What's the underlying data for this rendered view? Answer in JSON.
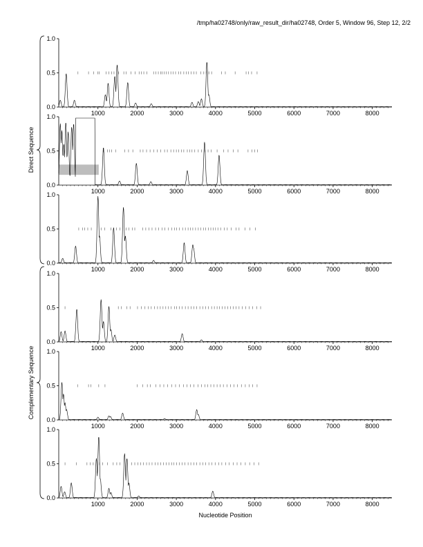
{
  "header": "/tmp/ha02748/only/raw_result_dir/ha02748, Order 5, Window 96, Step 12, 2/2",
  "xlabel": "Nucleotide Position",
  "group_labels": [
    "Direct Sequence",
    "Complementary Sequence"
  ],
  "colors": {
    "trace": "#000000",
    "axis": "#000000",
    "highlight": "#bdbdbd",
    "tick": "#555555"
  },
  "chart_data": [
    {
      "type": "line",
      "panel": 1,
      "xlim": [
        0,
        8500
      ],
      "ylim": [
        0,
        1
      ],
      "yticks": [
        "0.0",
        "0.5",
        "1.0"
      ],
      "xticks": [
        "1000",
        "2000",
        "3000",
        "4000",
        "5000",
        "6000",
        "7000",
        "8000"
      ],
      "peaks": [
        [
          40,
          0.1
        ],
        [
          190,
          0.49
        ],
        [
          400,
          0.1
        ],
        [
          1190,
          0.18
        ],
        [
          1260,
          0.35
        ],
        [
          1430,
          0.45
        ],
        [
          1490,
          0.62
        ],
        [
          1760,
          0.36
        ],
        [
          1960,
          0.06
        ],
        [
          2360,
          0.05
        ],
        [
          3400,
          0.07
        ],
        [
          3560,
          0.08
        ],
        [
          3640,
          0.12
        ],
        [
          3780,
          0.66
        ],
        [
          3830,
          0.18
        ]
      ],
      "marks": [
        490,
        760,
        890,
        1000,
        1030,
        1210,
        1280,
        1350,
        1410,
        1530,
        1660,
        1720,
        1840,
        1950,
        2050,
        2110,
        2170,
        2250,
        2420,
        2480,
        2540,
        2600,
        2640,
        2690,
        2740,
        2800,
        2860,
        2920,
        2980,
        3060,
        3110,
        3190,
        3250,
        3310,
        3380,
        3450,
        3510,
        3620,
        3700,
        3760,
        3830,
        3900,
        4150,
        4250,
        4500,
        4780,
        4840,
        4920,
        5060
      ]
    },
    {
      "type": "line",
      "panel": 2,
      "xlim": [
        0,
        8500
      ],
      "ylim": [
        0,
        1
      ],
      "yticks": [
        "0.0",
        "0.5",
        "1.0"
      ],
      "xticks": [
        "1000",
        "2000",
        "3000",
        "4000",
        "5000",
        "6000",
        "7000",
        "8000"
      ],
      "highlight_region": {
        "x": [
          0,
          1020
        ],
        "y": [
          0.15,
          0.3
        ]
      },
      "plateau": {
        "x": [
          430,
          920
        ],
        "y": 0.98
      },
      "peaks": [
        [
          40,
          0.9
        ],
        [
          80,
          0.8
        ],
        [
          130,
          0.6
        ],
        [
          180,
          0.92
        ],
        [
          240,
          0.78
        ],
        [
          330,
          0.85
        ],
        [
          380,
          0.9
        ],
        [
          1140,
          0.55
        ],
        [
          1150,
          0.25
        ],
        [
          1550,
          0.06
        ],
        [
          1980,
          0.32
        ],
        [
          2350,
          0.05
        ],
        [
          3280,
          0.21
        ],
        [
          3720,
          0.63
        ],
        [
          4090,
          0.44
        ]
      ],
      "marks": [
        1140,
        1240,
        1300,
        1350,
        1450,
        1680,
        1780,
        1890,
        2080,
        2150,
        2240,
        2330,
        2420,
        2510,
        2600,
        2700,
        2770,
        2860,
        2930,
        3000,
        3060,
        3130,
        3190,
        3280,
        3340,
        3400,
        3470,
        3560,
        3640,
        3730,
        3810,
        3890,
        4040,
        4210,
        4320,
        4450,
        4570,
        4830,
        4930,
        5000,
        5070
      ]
    },
    {
      "type": "line",
      "panel": 3,
      "xlim": [
        0,
        8500
      ],
      "ylim": [
        0,
        1
      ],
      "yticks": [
        "0.0",
        "0.5",
        "1.0"
      ],
      "xticks": [
        "1000",
        "2000",
        "3000",
        "4000",
        "5000",
        "6000",
        "7000",
        "8000"
      ],
      "peaks": [
        [
          100,
          0.07
        ],
        [
          430,
          0.25
        ],
        [
          1000,
          0.98
        ],
        [
          1040,
          0.4
        ],
        [
          1400,
          0.52
        ],
        [
          1650,
          0.82
        ],
        [
          1700,
          0.4
        ],
        [
          2420,
          0.04
        ],
        [
          3200,
          0.3
        ],
        [
          3420,
          0.27
        ],
        [
          3440,
          0.22
        ]
      ],
      "marks": [
        510,
        610,
        660,
        740,
        830,
        1080,
        1170,
        1330,
        1470,
        1560,
        1720,
        1790,
        1880,
        1940,
        2140,
        2220,
        2300,
        2380,
        2470,
        2550,
        2640,
        2710,
        2800,
        2880,
        2950,
        3010,
        3080,
        3160,
        3230,
        3300,
        3360,
        3420,
        3490,
        3560,
        3620,
        3690,
        3750,
        3820,
        3880,
        3940,
        4000,
        4060,
        4130,
        4220,
        4300,
        4400,
        4520,
        4600,
        4750,
        4880,
        5020
      ]
    },
    {
      "type": "line",
      "panel": 4,
      "xlim": [
        0,
        8500
      ],
      "ylim": [
        0,
        1
      ],
      "yticks": [
        "0.0",
        "0.5",
        "1.0"
      ],
      "xticks": [
        "1000",
        "2000",
        "3000",
        "4000",
        "5000",
        "6000",
        "7000",
        "8000"
      ],
      "peaks": [
        [
          60,
          0.15
        ],
        [
          160,
          0.16
        ],
        [
          460,
          0.48
        ],
        [
          1080,
          0.62
        ],
        [
          1140,
          0.3
        ],
        [
          1280,
          0.52
        ],
        [
          1330,
          0.18
        ],
        [
          1430,
          0.1
        ],
        [
          3150,
          0.12
        ],
        [
          3640,
          0.03
        ]
      ],
      "marks": [
        160,
        1520,
        1600,
        1740,
        1820,
        2010,
        2110,
        2200,
        2280,
        2360,
        2440,
        2520,
        2590,
        2660,
        2730,
        2800,
        2870,
        2950,
        3010,
        3080,
        3150,
        3230,
        3300,
        3380,
        3450,
        3520,
        3600,
        3680,
        3750,
        3820,
        3900,
        3970,
        4040,
        4100,
        4170,
        4240,
        4310,
        4380,
        4450,
        4520,
        4600,
        4680,
        4770,
        4860,
        4950,
        5050,
        5150
      ]
    },
    {
      "type": "line",
      "panel": 5,
      "xlim": [
        0,
        8500
      ],
      "ylim": [
        0,
        1
      ],
      "yticks": [
        "0.0",
        "0.5",
        "1.0"
      ],
      "xticks": [
        "1000",
        "2000",
        "3000",
        "4000",
        "5000",
        "6000",
        "7000",
        "8000"
      ],
      "peaks": [
        [
          80,
          0.55
        ],
        [
          120,
          0.38
        ],
        [
          160,
          0.25
        ],
        [
          200,
          0.15
        ],
        [
          1000,
          0.04
        ],
        [
          1280,
          0.06
        ],
        [
          1320,
          0.05
        ],
        [
          1630,
          0.1
        ],
        [
          2700,
          0.02
        ],
        [
          3520,
          0.15
        ],
        [
          3560,
          0.08
        ]
      ],
      "marks": [
        480,
        760,
        820,
        1020,
        1180,
        2000,
        2140,
        2260,
        2340,
        2480,
        2580,
        2680,
        2780,
        2880,
        2980,
        3080,
        3180,
        3270,
        3360,
        3450,
        3550,
        3640,
        3730,
        3800,
        3880,
        3960,
        4040,
        4120,
        4200,
        4290,
        4380,
        4470,
        4560,
        4660,
        4760,
        4860,
        4950,
        5060
      ]
    },
    {
      "type": "line",
      "panel": 6,
      "xlim": [
        0,
        8500
      ],
      "ylim": [
        0,
        1
      ],
      "yticks": [
        "0.0",
        "0.5",
        "1.0"
      ],
      "xticks": [
        "1000",
        "2000",
        "3000",
        "4000",
        "5000",
        "6000",
        "7000",
        "8000"
      ],
      "peaks": [
        [
          60,
          0.17
        ],
        [
          150,
          0.09
        ],
        [
          320,
          0.22
        ],
        [
          960,
          0.58
        ],
        [
          1020,
          0.9
        ],
        [
          1060,
          0.28
        ],
        [
          1280,
          0.14
        ],
        [
          1330,
          0.08
        ],
        [
          1680,
          0.65
        ],
        [
          1740,
          0.58
        ],
        [
          1790,
          0.22
        ],
        [
          2040,
          0.03
        ],
        [
          3930,
          0.1
        ]
      ],
      "marks": [
        160,
        450,
        720,
        800,
        880,
        1040,
        1120,
        1240,
        1390,
        1480,
        1560,
        1860,
        1940,
        2020,
        2090,
        2160,
        2240,
        2310,
        2380,
        2460,
        2530,
        2600,
        2670,
        2740,
        2810,
        2880,
        2940,
        3010,
        3080,
        3150,
        3220,
        3300,
        3370,
        3450,
        3520,
        3600,
        3680,
        3750,
        3830,
        3910,
        3990,
        4080,
        4160,
        4260,
        4350,
        4450,
        4550,
        4650,
        4760,
        4870,
        4980,
        5100
      ]
    }
  ]
}
